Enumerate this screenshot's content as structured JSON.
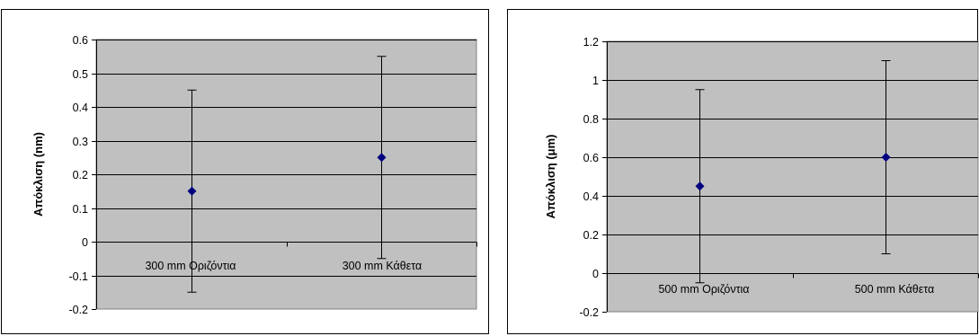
{
  "chart_data": [
    {
      "type": "scatter",
      "ylabel": "Απόκλιση (nm)",
      "xlabel": "",
      "categories": [
        "300 mm Οριζόντια",
        "300 mm Κάθετα"
      ],
      "series": [
        {
          "values": [
            0.15,
            0.25
          ],
          "error_low": [
            -0.15,
            -0.05
          ],
          "error_high": [
            0.45,
            0.55
          ]
        }
      ],
      "ylim": [
        -0.2,
        0.6
      ],
      "yticks": [
        -0.2,
        -0.1,
        0,
        0.1,
        0.2,
        0.3,
        0.4,
        0.5,
        0.6
      ],
      "ytick_labels": [
        "-0.2",
        "-0.1",
        "0",
        "0.1",
        "0.2",
        "0.3",
        "0.4",
        "0.5",
        "0.6"
      ],
      "grid": true,
      "colors": {
        "plot_bg": "#c0c0c0",
        "marker": "#000080",
        "grid": "#000000"
      }
    },
    {
      "type": "scatter",
      "ylabel": "Απόκλιση (μm)",
      "xlabel": "",
      "categories": [
        "500 mm Οριζόντια",
        "500 mm Κάθετα"
      ],
      "series": [
        {
          "values": [
            0.45,
            0.6
          ],
          "error_low": [
            -0.05,
            0.1
          ],
          "error_high": [
            0.95,
            1.1
          ]
        }
      ],
      "ylim": [
        -0.2,
        1.2
      ],
      "yticks": [
        -0.2,
        0,
        0.2,
        0.4,
        0.6,
        0.8,
        1,
        1.2
      ],
      "ytick_labels": [
        "-0.2",
        "0",
        "0.2",
        "0.4",
        "0.6",
        "0.8",
        "1",
        "1.2"
      ],
      "grid": true,
      "colors": {
        "plot_bg": "#c0c0c0",
        "marker": "#000080",
        "grid": "#000000"
      }
    }
  ]
}
